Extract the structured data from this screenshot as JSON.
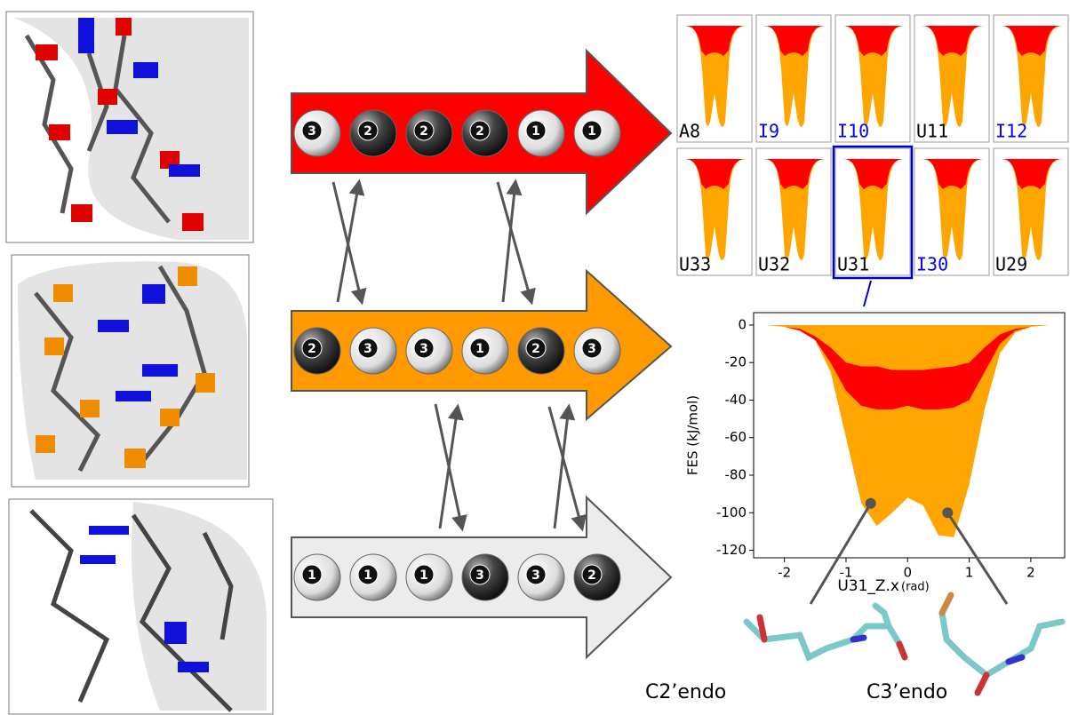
{
  "rows": [
    {
      "color": "#ff0000",
      "balls": [
        3,
        2,
        2,
        2,
        1,
        1
      ]
    },
    {
      "color": "#ff9900",
      "balls": [
        2,
        3,
        3,
        1,
        2,
        3
      ]
    },
    {
      "color": "#ececec",
      "balls": [
        1,
        1,
        1,
        3,
        3,
        2
      ]
    }
  ],
  "panels": [
    {
      "label": "A8",
      "color": "#000000"
    },
    {
      "label": "I9",
      "color": "#0000ff"
    },
    {
      "label": "I10",
      "color": "#0000ff"
    },
    {
      "label": "U11",
      "color": "#000000"
    },
    {
      "label": "I12",
      "color": "#0000ff"
    },
    {
      "label": "U33",
      "color": "#000000"
    },
    {
      "label": "U32",
      "color": "#000000"
    },
    {
      "label": "U31",
      "color": "#000000",
      "highlight": true
    },
    {
      "label": "I30",
      "color": "#0000ff"
    },
    {
      "label": "U29",
      "color": "#000000"
    }
  ],
  "chart_data": {
    "type": "area",
    "ylabel": "FES (kJ/mol)",
    "xlabel": "U31_Z.x",
    "xlabel_unit": "(rad)",
    "x": [
      -2.3,
      -2.0,
      -1.75,
      -1.5,
      -1.25,
      -1.0,
      -0.75,
      -0.5,
      -0.25,
      0,
      0.25,
      0.5,
      0.75,
      1.0,
      1.25,
      1.5,
      1.75,
      2.0,
      2.3
    ],
    "series": [
      {
        "color": "#ffa500",
        "values": [
          0,
          -1,
          -3,
          -8,
          -25,
          -60,
          -95,
          -107,
          -100,
          -92,
          -96,
          -112,
          -113,
          -85,
          -45,
          -15,
          -4,
          -1,
          0
        ]
      },
      {
        "color": "#ff0000",
        "values": [
          0,
          -1,
          -3,
          -8,
          -20,
          -35,
          -43,
          -45,
          -45,
          -43,
          -45,
          -45,
          -44,
          -40,
          -25,
          -10,
          -3,
          -1,
          0
        ],
        "upper": [
          0,
          -1,
          -2,
          -6,
          -12,
          -20,
          -22,
          -22,
          -24,
          -24,
          -24,
          -23,
          -22,
          -20,
          -12,
          -5,
          -2,
          -1,
          0
        ]
      }
    ],
    "markers": [
      {
        "x": -0.6,
        "y": -95,
        "label": "C2’endo"
      },
      {
        "x": 0.65,
        "y": -100,
        "label": "C3’endo"
      }
    ],
    "xlim": [
      -2.5,
      2.55
    ],
    "ylim": [
      -124,
      6.6
    ],
    "xticks": [
      -2,
      -1,
      0,
      1,
      2
    ],
    "yticks": [
      0,
      -20,
      -40,
      -60,
      -80,
      -100,
      -120
    ]
  }
}
